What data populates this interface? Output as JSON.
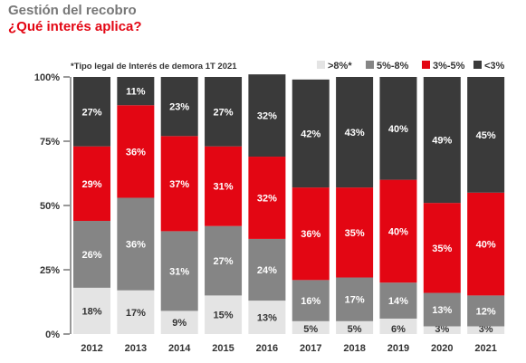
{
  "header": {
    "title": "Gestión del recobro",
    "subtitle": "¿Qué interés aplica?"
  },
  "chart_data": {
    "type": "bar",
    "stacked": true,
    "orientation": "vertical",
    "note": "*Tipo legal de Interés de demora 1T 2021",
    "categories": [
      "2012",
      "2013",
      "2014",
      "2015",
      "2016",
      "2017",
      "2018",
      "2019",
      "2020",
      "2021"
    ],
    "y_ticks": [
      "0%",
      "25%",
      "50%",
      "75%",
      "100%"
    ],
    "ylim": [
      0,
      100
    ],
    "grid": false,
    "legend_position": "top-right",
    "series": [
      {
        "name": ">8%*",
        "color": "#e4e4e4",
        "text_color": "#333333",
        "values": [
          18,
          17,
          9,
          15,
          13,
          5,
          5,
          6,
          3,
          3
        ]
      },
      {
        "name": "5%-8%",
        "color": "#858585",
        "text_color": "#ffffff",
        "values": [
          26,
          36,
          31,
          27,
          24,
          16,
          17,
          14,
          13,
          12
        ]
      },
      {
        "name": "3%-5%",
        "color": "#e30613",
        "text_color": "#ffffff",
        "values": [
          29,
          36,
          37,
          31,
          32,
          36,
          35,
          40,
          35,
          40
        ]
      },
      {
        "name": "<3%",
        "color": "#3a3a3a",
        "text_color": "#ffffff",
        "values": [
          27,
          11,
          23,
          27,
          32,
          42,
          43,
          40,
          49,
          45
        ]
      }
    ]
  }
}
